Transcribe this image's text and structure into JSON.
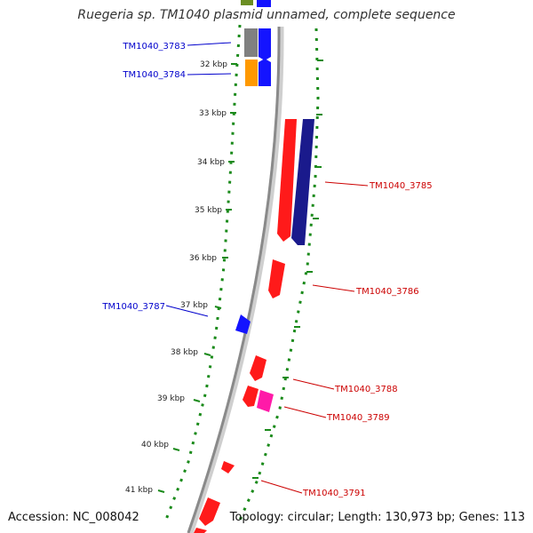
{
  "map": {
    "title": "Ruegeria sp. TM1040 plasmid unnamed, complete sequence",
    "accession": "Accession: NC_008042",
    "summary": "Topology: circular; Length: 130,973 bp; Genes: 113",
    "colors": {
      "backbone": "#8a8a8a",
      "tick": "#1a8a1a",
      "forward_label": "#cc0000",
      "reverse_label": "#0000cc",
      "red": "#ff1a1a",
      "blue": "#1414ff",
      "navy": "#1a1a8c",
      "magenta": "#ff1aa8",
      "orange": "#ff9900",
      "gray": "#808080",
      "olive": "#6b8e23"
    },
    "scale_labels": [
      "32 kbp",
      "33 kbp",
      "34 kbp",
      "35 kbp",
      "36 kbp",
      "37 kbp",
      "38 kbp",
      "39 kbp",
      "40 kbp",
      "41 kbp"
    ],
    "gene_labels": [
      {
        "text": "TM1040_3783",
        "strand": "reverse"
      },
      {
        "text": "TM1040_3784",
        "strand": "reverse"
      },
      {
        "text": "TM1040_3785",
        "strand": "forward"
      },
      {
        "text": "TM1040_3786",
        "strand": "forward"
      },
      {
        "text": "TM1040_3787",
        "strand": "reverse"
      },
      {
        "text": "TM1040_3788",
        "strand": "forward"
      },
      {
        "text": "TM1040_3789",
        "strand": "forward"
      },
      {
        "text": "TM1040_3791",
        "strand": "forward"
      }
    ]
  }
}
